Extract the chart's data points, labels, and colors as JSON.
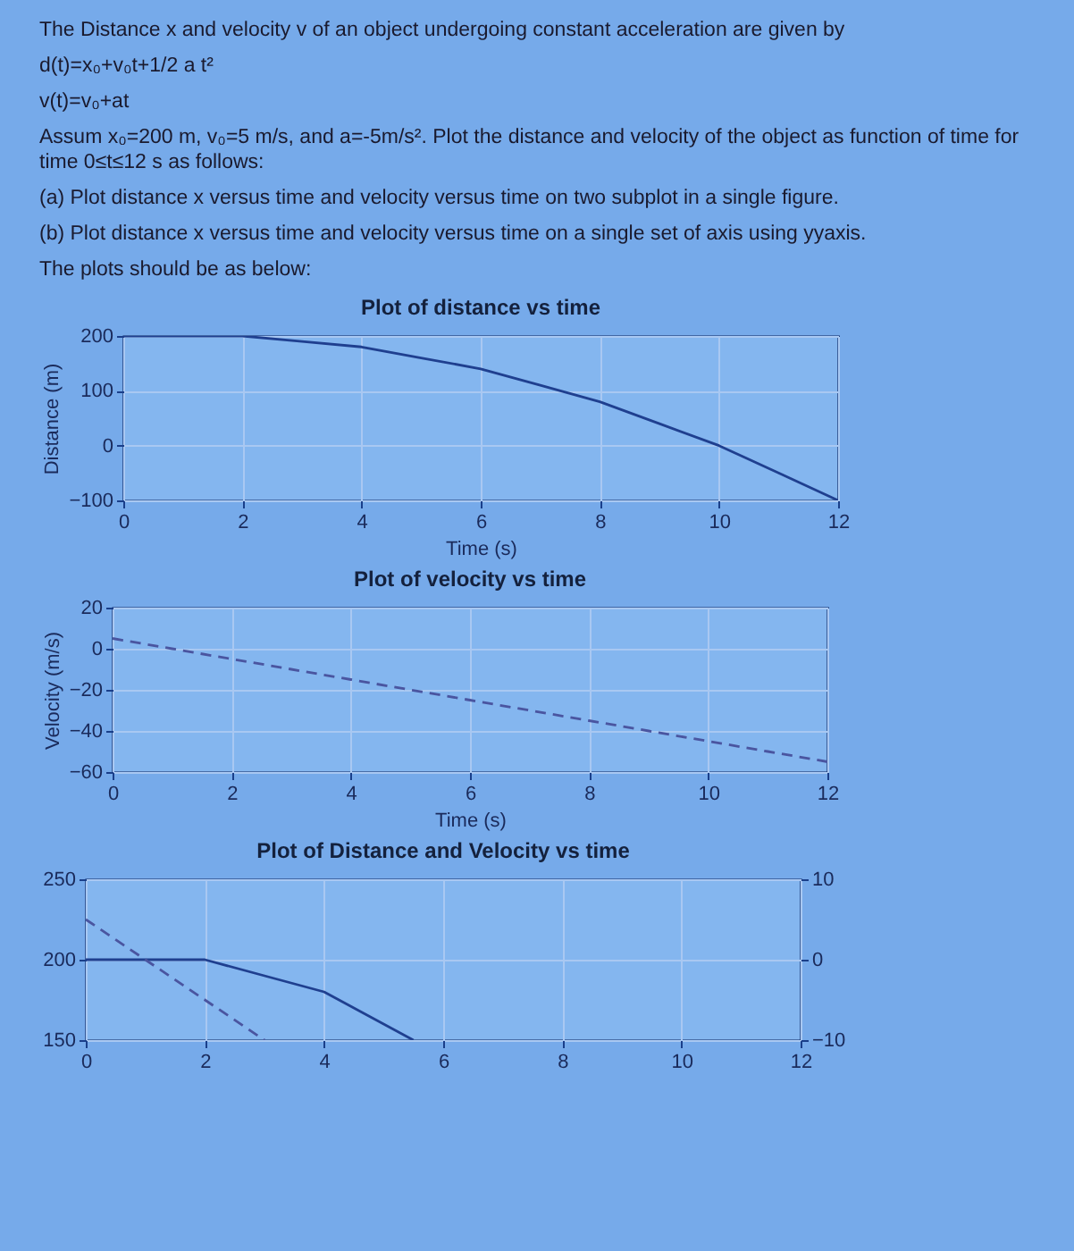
{
  "chart_data": [
    {
      "type": "other",
      "annotations": [
        "The Distance x and velocity v of an object undergoing constant acceleration are given by",
        "d(t)=x₀+v₀t+1/2 a t²",
        "v(t)=v₀+at",
        "Assum x₀=200 m, v₀=5 m/s, and a=-5m/s². Plot the distance and velocity of the object as function of time for time 0≤t≤12 s as follows:",
        "(a) Plot distance x versus time and velocity versus time on two subplot in a single figure.",
        "(b) Plot distance x versus time and velocity versus time on a single set of axis using yyaxis.",
        "The plots should be as below:"
      ]
    },
    {
      "type": "line",
      "title": "Plot of distance vs time",
      "xlabel": "Time (s)",
      "ylabel": "Distance (m)",
      "x": [
        0,
        1,
        2,
        3,
        4,
        5,
        6,
        7,
        8,
        9,
        10,
        11,
        12
      ],
      "values": [
        200,
        200,
        200,
        190,
        180,
        160,
        140,
        110,
        80,
        40,
        0,
        -50,
        -100
      ],
      "color": "#1f3f8f",
      "xlim": [
        0,
        12
      ],
      "xticks": [
        0,
        2,
        4,
        6,
        8,
        10,
        12
      ],
      "ylim": [
        -100,
        200
      ],
      "yticks": [
        -100,
        0,
        100,
        200
      ],
      "grid": true
    },
    {
      "type": "line",
      "title": "Plot of velocity vs time",
      "xlabel": "Time (s)",
      "ylabel": "Velocity (m/s)",
      "x": [
        0,
        1,
        2,
        3,
        4,
        5,
        6,
        7,
        8,
        9,
        10,
        11,
        12
      ],
      "values": [
        5,
        0,
        -5,
        -10,
        -15,
        -20,
        -25,
        -30,
        -35,
        -40,
        -45,
        -50,
        -55
      ],
      "color": "#4a55a0",
      "line_style": "dashed",
      "xlim": [
        0,
        12
      ],
      "xticks": [
        0,
        2,
        4,
        6,
        8,
        10,
        12
      ],
      "ylim": [
        -60,
        20
      ],
      "yticks": [
        -60,
        -40,
        -20,
        0,
        20
      ],
      "grid": true
    },
    {
      "type": "line",
      "title": "Plot of Distance and Velocity vs time",
      "xlim": [
        0,
        12
      ],
      "xticks": [
        0,
        2,
        4,
        6,
        8,
        10,
        12
      ],
      "ylim": [
        150,
        250
      ],
      "yticks": [
        150,
        200,
        250
      ],
      "y2lim": [
        -10,
        10
      ],
      "y2ticks": [
        -10,
        0,
        10
      ],
      "grid": true,
      "series": [
        {
          "color": "#1f3f8f",
          "x": [
            0,
            1,
            2,
            3,
            4,
            5,
            5.5
          ],
          "values": [
            200,
            200,
            200,
            190,
            180,
            160,
            150
          ]
        },
        {
          "color": "#4a55a0",
          "axis": "y2",
          "line_style": "dashed",
          "x": [
            0,
            1,
            2,
            3
          ],
          "values": [
            5,
            0,
            -5,
            -10
          ]
        }
      ]
    }
  ]
}
